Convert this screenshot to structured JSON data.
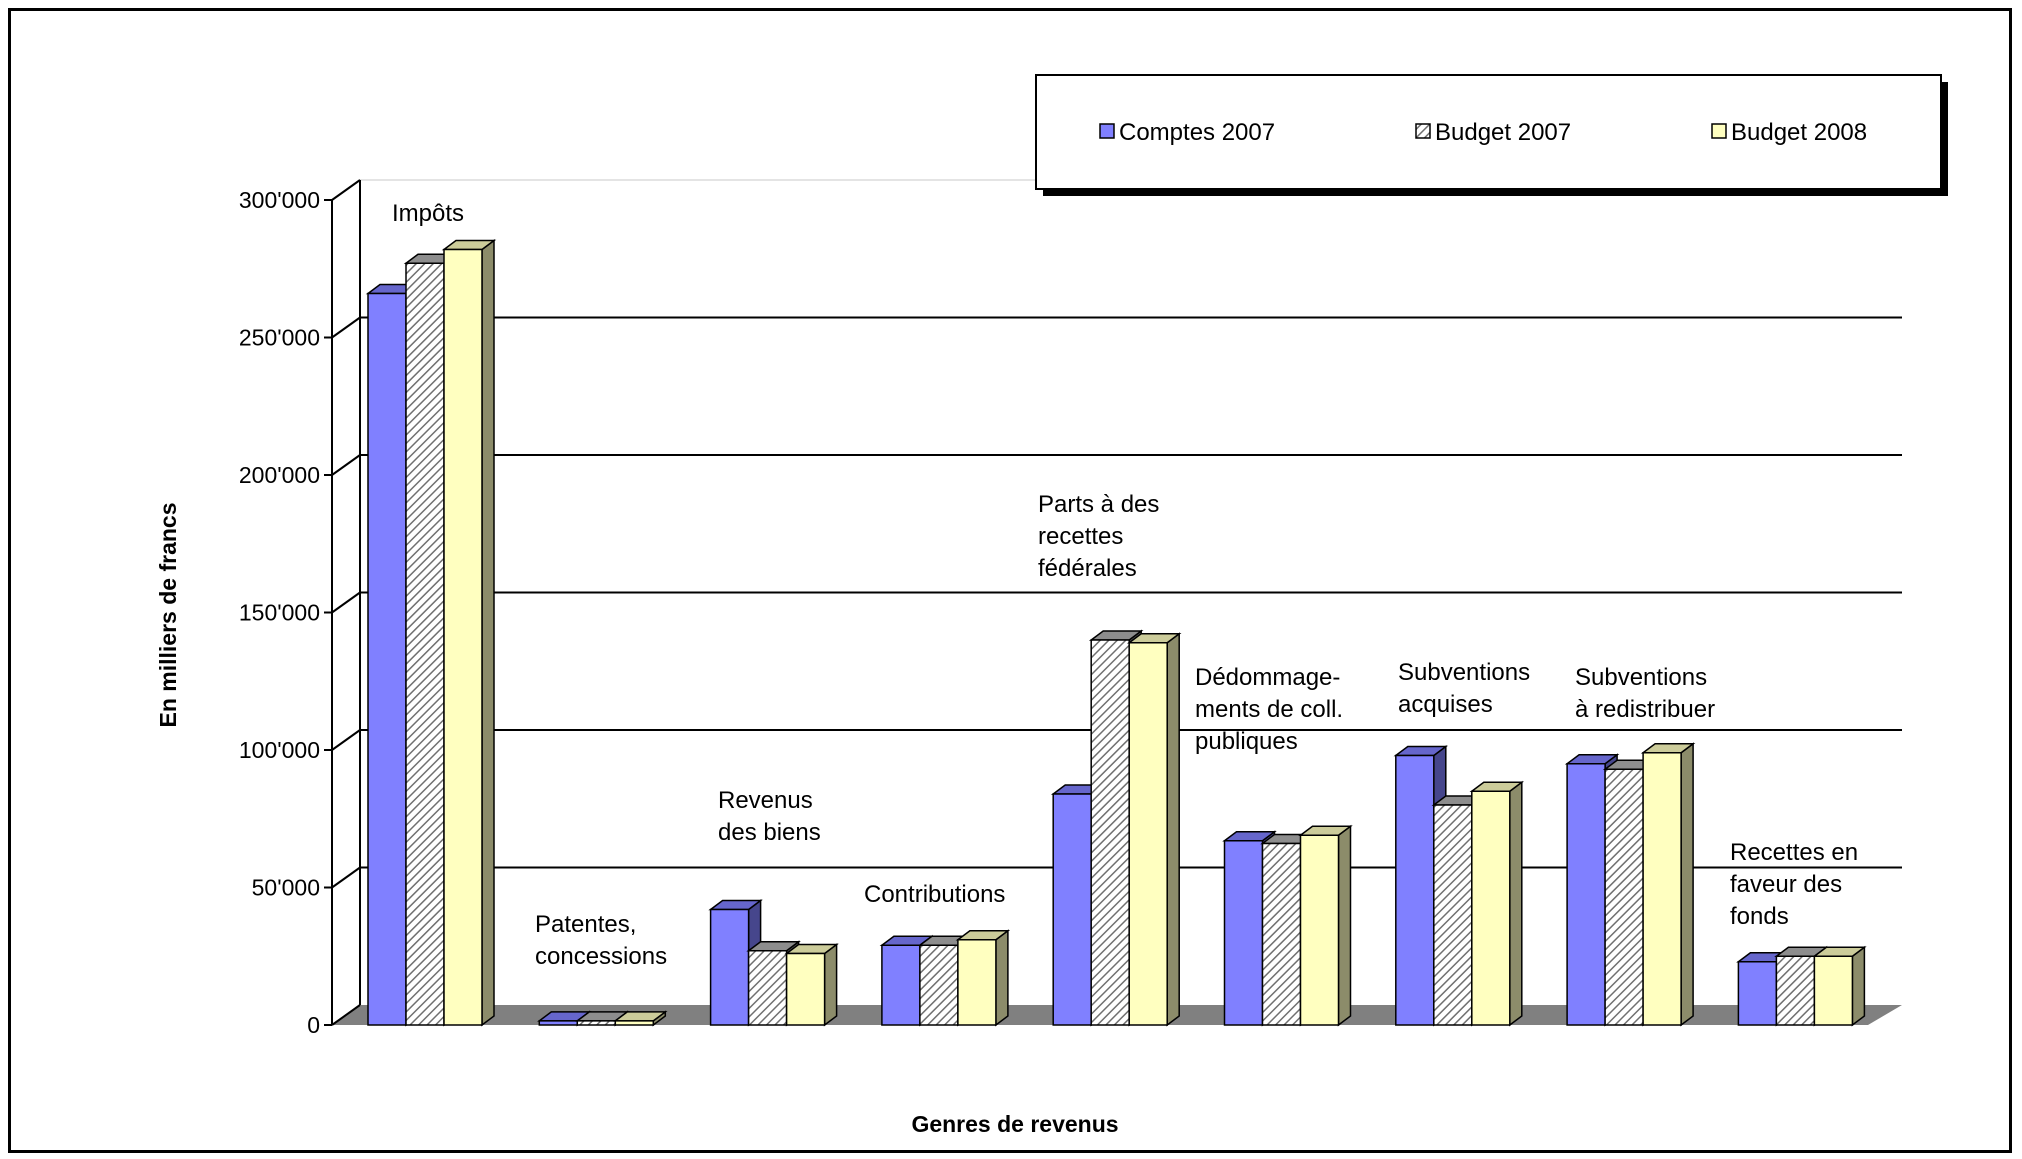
{
  "chart_data": {
    "type": "bar",
    "xlabel": "Genres de revenus",
    "ylabel": "En milliers de francs",
    "ylim": [
      0,
      300000
    ],
    "yticks": [
      "0",
      "50'000",
      "100'000",
      "150'000",
      "200'000",
      "250'000",
      "300'000"
    ],
    "grid": true,
    "legend_position": "top-right",
    "categories": [
      "Impôts",
      "Patentes, concessions",
      "Revenus des biens",
      "Contributions",
      "Parts à des recettes fédérales",
      "Dédommage-ments de coll. publiques",
      "Subventions acquises",
      "Subventions à redistribuer",
      "Recettes en faveur des fonds"
    ],
    "category_labels": [
      [
        "Impôts"
      ],
      [
        "Patentes,",
        "concessions"
      ],
      [
        "Revenus",
        "des biens"
      ],
      [
        "Contributions"
      ],
      [
        "Parts à des",
        "recettes",
        "fédérales"
      ],
      [
        "Dédommage-",
        "ments de coll.",
        "publiques"
      ],
      [
        "Subventions",
        "acquises"
      ],
      [
        "Subventions",
        "à redistribuer"
      ],
      [
        "Recettes en",
        "faveur des",
        "fonds"
      ]
    ],
    "series": [
      {
        "name": "Comptes 2007",
        "color": "#8080ff",
        "pattern": "solid",
        "values": [
          266000,
          1500,
          42000,
          29000,
          84000,
          67000,
          98000,
          95000,
          23000
        ]
      },
      {
        "name": "Budget 2007",
        "color": "#c0c0c0",
        "pattern": "hatch",
        "values": [
          277000,
          1500,
          27000,
          29000,
          140000,
          66000,
          80000,
          93000,
          25000
        ]
      },
      {
        "name": "Budget 2008",
        "color": "#ffffc0",
        "pattern": "solid",
        "values": [
          282000,
          1500,
          26000,
          31000,
          139000,
          69000,
          85000,
          99000,
          25000
        ]
      }
    ]
  }
}
